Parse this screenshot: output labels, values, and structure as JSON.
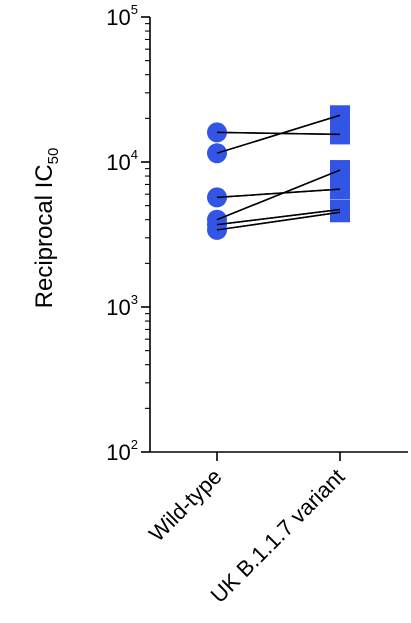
{
  "chart_data": {
    "type": "scatter",
    "subtype": "paired-dot",
    "yscale": "log",
    "ylim": [
      100,
      100000
    ],
    "ylabel": {
      "main": "Reciprocal IC",
      "subscript": "50"
    },
    "yticks": [
      {
        "value": 100,
        "base": "10",
        "exponent": "2"
      },
      {
        "value": 1000,
        "base": "10",
        "exponent": "3"
      },
      {
        "value": 10000,
        "base": "10",
        "exponent": "4"
      },
      {
        "value": 100000,
        "base": "10",
        "exponent": "5"
      }
    ],
    "categories": [
      "Wild-type",
      "UK B.1.1.7 variant"
    ],
    "markers": [
      "circle",
      "square"
    ],
    "marker_color": "#3355e6",
    "line_color": "#000000",
    "pairs": [
      {
        "wild_type": 16000,
        "uk_variant": 15500
      },
      {
        "wild_type": 11500,
        "uk_variant": 21000
      },
      {
        "wild_type": 5700,
        "uk_variant": 6500
      },
      {
        "wild_type": 4000,
        "uk_variant": 8800
      },
      {
        "wild_type": 3700,
        "uk_variant": 4700
      },
      {
        "wild_type": 3400,
        "uk_variant": 4500
      }
    ]
  }
}
